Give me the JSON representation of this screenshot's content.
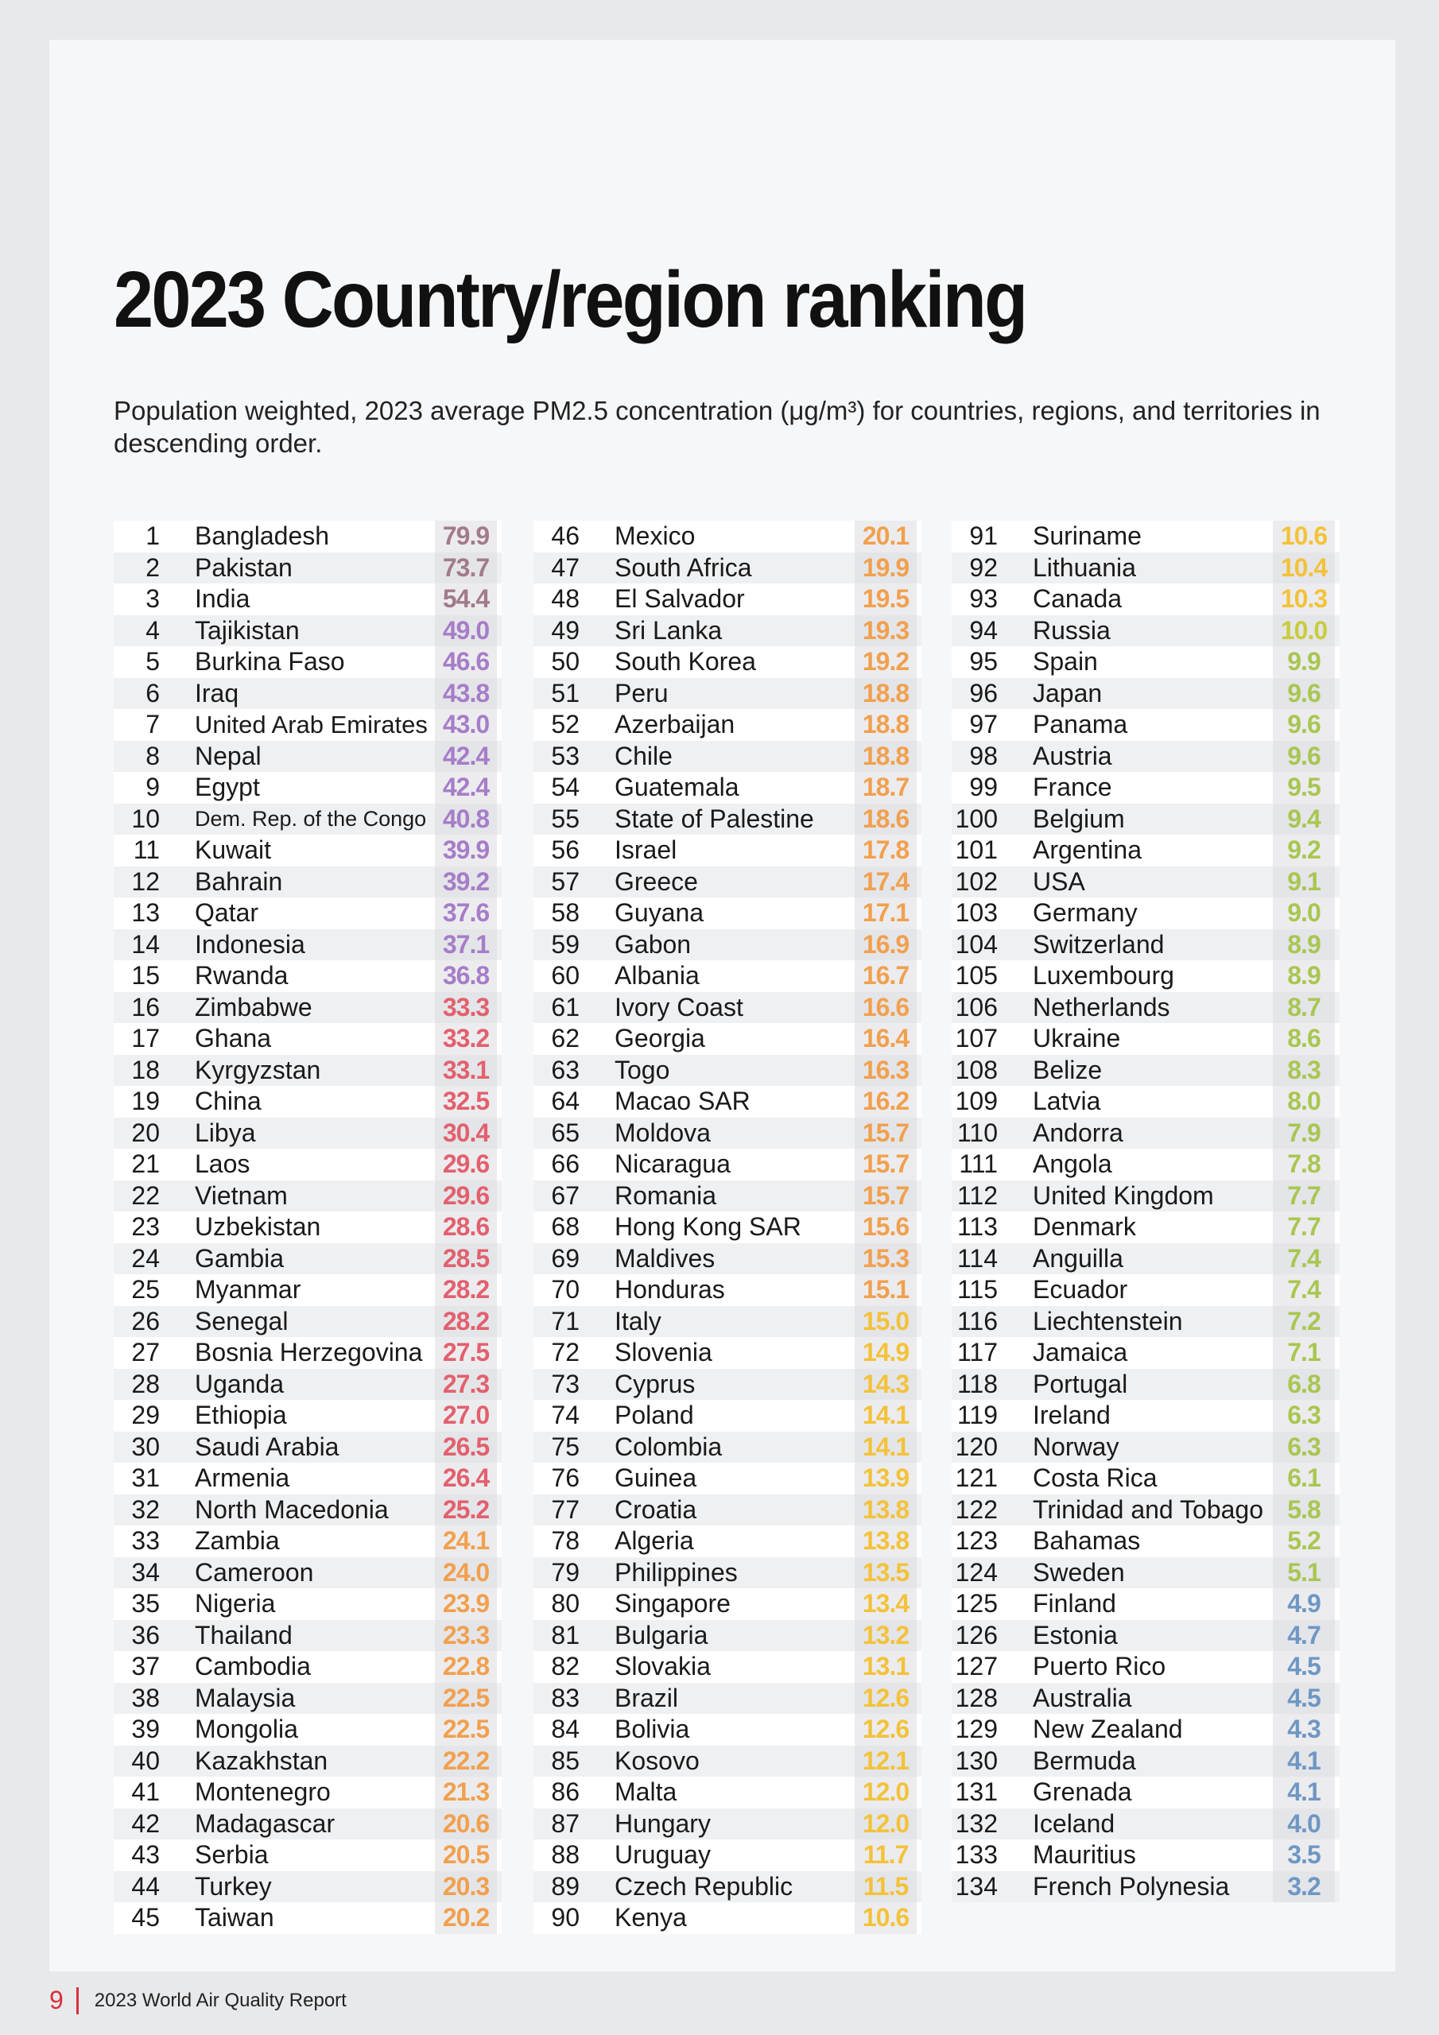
{
  "header": {
    "title": "2023 Country/region ranking",
    "subtitle": "Population weighted, 2023 average PM2.5 concentration (μg/m³) for countries, regions, and territories in descending order."
  },
  "table": {
    "columns": [
      {
        "rows": [
          [
            1,
            "Bangladesh",
            "79.9",
            "#a27a8c"
          ],
          [
            2,
            "Pakistan",
            "73.7",
            "#a27a8c"
          ],
          [
            3,
            "India",
            "54.4",
            "#a27a8c"
          ],
          [
            4,
            "Tajikistan",
            "49.0",
            "#a67dc8"
          ],
          [
            5,
            "Burkina Faso",
            "46.6",
            "#a67dc8"
          ],
          [
            6,
            "Iraq",
            "43.8",
            "#a67dc8"
          ],
          [
            7,
            "United Arab Emirates",
            "43.0",
            "#a67dc8"
          ],
          [
            8,
            "Nepal",
            "42.4",
            "#a67dc8"
          ],
          [
            9,
            "Egypt",
            "42.4",
            "#a67dc8"
          ],
          [
            10,
            "Dem. Rep. of the Congo",
            "40.8",
            "#a67dc8"
          ],
          [
            11,
            "Kuwait",
            "39.9",
            "#a67dc8"
          ],
          [
            12,
            "Bahrain",
            "39.2",
            "#a67dc8"
          ],
          [
            13,
            "Qatar",
            "37.6",
            "#a67dc8"
          ],
          [
            14,
            "Indonesia",
            "37.1",
            "#a67dc8"
          ],
          [
            15,
            "Rwanda",
            "36.8",
            "#a67dc8"
          ],
          [
            16,
            "Zimbabwe",
            "33.3",
            "#e2606e"
          ],
          [
            17,
            "Ghana",
            "33.2",
            "#e2606e"
          ],
          [
            18,
            "Kyrgyzstan",
            "33.1",
            "#e2606e"
          ],
          [
            19,
            "China",
            "32.5",
            "#e2606e"
          ],
          [
            20,
            "Libya",
            "30.4",
            "#e2606e"
          ],
          [
            21,
            "Laos",
            "29.6",
            "#e2606e"
          ],
          [
            22,
            "Vietnam",
            "29.6",
            "#e2606e"
          ],
          [
            23,
            "Uzbekistan",
            "28.6",
            "#e2606e"
          ],
          [
            24,
            "Gambia",
            "28.5",
            "#e2606e"
          ],
          [
            25,
            "Myanmar",
            "28.2",
            "#e2606e"
          ],
          [
            26,
            "Senegal",
            "28.2",
            "#e2606e"
          ],
          [
            27,
            "Bosnia Herzegovina",
            "27.5",
            "#e2606e"
          ],
          [
            28,
            "Uganda",
            "27.3",
            "#e2606e"
          ],
          [
            29,
            "Ethiopia",
            "27.0",
            "#e2606e"
          ],
          [
            30,
            "Saudi Arabia",
            "26.5",
            "#e2606e"
          ],
          [
            31,
            "Armenia",
            "26.4",
            "#e2606e"
          ],
          [
            32,
            "North Macedonia",
            "25.2",
            "#e2606e"
          ],
          [
            33,
            "Zambia",
            "24.1",
            "#f1a04e"
          ],
          [
            34,
            "Cameroon",
            "24.0",
            "#f1a04e"
          ],
          [
            35,
            "Nigeria",
            "23.9",
            "#f1a04e"
          ],
          [
            36,
            "Thailand",
            "23.3",
            "#f1a04e"
          ],
          [
            37,
            "Cambodia",
            "22.8",
            "#f1a04e"
          ],
          [
            38,
            "Malaysia",
            "22.5",
            "#f1a04e"
          ],
          [
            39,
            "Mongolia",
            "22.5",
            "#f1a04e"
          ],
          [
            40,
            "Kazakhstan",
            "22.2",
            "#f1a04e"
          ],
          [
            41,
            "Montenegro",
            "21.3",
            "#f1a04e"
          ],
          [
            42,
            "Madagascar",
            "20.6",
            "#f1a04e"
          ],
          [
            43,
            "Serbia",
            "20.5",
            "#f1a04e"
          ],
          [
            44,
            "Turkey",
            "20.3",
            "#f1a04e"
          ],
          [
            45,
            "Taiwan",
            "20.2",
            "#f1a04e"
          ]
        ]
      },
      {
        "rows": [
          [
            46,
            "Mexico",
            "20.1",
            "#f1a04e"
          ],
          [
            47,
            "South Africa",
            "19.9",
            "#f1a04e"
          ],
          [
            48,
            "El Salvador",
            "19.5",
            "#f1a04e"
          ],
          [
            49,
            "Sri Lanka",
            "19.3",
            "#f1a04e"
          ],
          [
            50,
            "South Korea",
            "19.2",
            "#f1a04e"
          ],
          [
            51,
            "Peru",
            "18.8",
            "#f1a04e"
          ],
          [
            52,
            "Azerbaijan",
            "18.8",
            "#f1a04e"
          ],
          [
            53,
            "Chile",
            "18.8",
            "#f1a04e"
          ],
          [
            54,
            "Guatemala",
            "18.7",
            "#f1a04e"
          ],
          [
            55,
            "State of Palestine",
            "18.6",
            "#f1a04e"
          ],
          [
            56,
            "Israel",
            "17.8",
            "#f1a04e"
          ],
          [
            57,
            "Greece",
            "17.4",
            "#f1a04e"
          ],
          [
            58,
            "Guyana",
            "17.1",
            "#f1a04e"
          ],
          [
            59,
            "Gabon",
            "16.9",
            "#f1a04e"
          ],
          [
            60,
            "Albania",
            "16.7",
            "#f1a04e"
          ],
          [
            61,
            "Ivory Coast",
            "16.6",
            "#f1a04e"
          ],
          [
            62,
            "Georgia",
            "16.4",
            "#f1a04e"
          ],
          [
            63,
            "Togo",
            "16.3",
            "#f1a04e"
          ],
          [
            64,
            "Macao SAR",
            "16.2",
            "#f1a04e"
          ],
          [
            65,
            "Moldova",
            "15.7",
            "#f1a04e"
          ],
          [
            66,
            "Nicaragua",
            "15.7",
            "#f1a04e"
          ],
          [
            67,
            "Romania",
            "15.7",
            "#f1a04e"
          ],
          [
            68,
            "Hong Kong SAR",
            "15.6",
            "#f1a04e"
          ],
          [
            69,
            "Maldives",
            "15.3",
            "#f1a04e"
          ],
          [
            70,
            "Honduras",
            "15.1",
            "#f1a04e"
          ],
          [
            71,
            "Italy",
            "15.0",
            "#f3c23a"
          ],
          [
            72,
            "Slovenia",
            "14.9",
            "#f3c23a"
          ],
          [
            73,
            "Cyprus",
            "14.3",
            "#f3c23a"
          ],
          [
            74,
            "Poland",
            "14.1",
            "#f3c23a"
          ],
          [
            75,
            "Colombia",
            "14.1",
            "#f3c23a"
          ],
          [
            76,
            "Guinea",
            "13.9",
            "#f3c23a"
          ],
          [
            77,
            "Croatia",
            "13.8",
            "#f3c23a"
          ],
          [
            78,
            "Algeria",
            "13.8",
            "#f3c23a"
          ],
          [
            79,
            "Philippines",
            "13.5",
            "#f3c23a"
          ],
          [
            80,
            "Singapore",
            "13.4",
            "#f3c23a"
          ],
          [
            81,
            "Bulgaria",
            "13.2",
            "#f3c23a"
          ],
          [
            82,
            "Slovakia",
            "13.1",
            "#f3c23a"
          ],
          [
            83,
            "Brazil",
            "12.6",
            "#f3c23a"
          ],
          [
            84,
            "Bolivia",
            "12.6",
            "#f3c23a"
          ],
          [
            85,
            "Kosovo",
            "12.1",
            "#f3c23a"
          ],
          [
            86,
            "Malta",
            "12.0",
            "#f3c23a"
          ],
          [
            87,
            "Hungary",
            "12.0",
            "#f3c23a"
          ],
          [
            88,
            "Uruguay",
            "11.7",
            "#f3c23a"
          ],
          [
            89,
            "Czech Republic",
            "11.5",
            "#f3c23a"
          ],
          [
            90,
            "Kenya",
            "10.6",
            "#f3c23a"
          ]
        ]
      },
      {
        "rows": [
          [
            91,
            "Suriname",
            "10.6",
            "#f3c23a"
          ],
          [
            92,
            "Lithuania",
            "10.4",
            "#f3c23a"
          ],
          [
            93,
            "Canada",
            "10.3",
            "#f3c23a"
          ],
          [
            94,
            "Russia",
            "10.0",
            "#c9cc3c"
          ],
          [
            95,
            "Spain",
            "9.9",
            "#a9c651"
          ],
          [
            96,
            "Japan",
            "9.6",
            "#a9c651"
          ],
          [
            97,
            "Panama",
            "9.6",
            "#a9c651"
          ],
          [
            98,
            "Austria",
            "9.6",
            "#a9c651"
          ],
          [
            99,
            "France",
            "9.5",
            "#a9c651"
          ],
          [
            100,
            "Belgium",
            "9.4",
            "#a9c651"
          ],
          [
            101,
            "Argentina",
            "9.2",
            "#a9c651"
          ],
          [
            102,
            "USA",
            "9.1",
            "#a9c651"
          ],
          [
            103,
            "Germany",
            "9.0",
            "#a9c651"
          ],
          [
            104,
            "Switzerland",
            "8.9",
            "#a9c651"
          ],
          [
            105,
            "Luxembourg",
            "8.9",
            "#a9c651"
          ],
          [
            106,
            "Netherlands",
            "8.7",
            "#a9c651"
          ],
          [
            107,
            "Ukraine",
            "8.6",
            "#a9c651"
          ],
          [
            108,
            "Belize",
            "8.3",
            "#a9c651"
          ],
          [
            109,
            "Latvia",
            "8.0",
            "#a9c651"
          ],
          [
            110,
            "Andorra",
            "7.9",
            "#a9c651"
          ],
          [
            111,
            "Angola",
            "7.8",
            "#a9c651"
          ],
          [
            112,
            "United Kingdom",
            "7.7",
            "#a9c651"
          ],
          [
            113,
            "Denmark",
            "7.7",
            "#a9c651"
          ],
          [
            114,
            "Anguilla",
            "7.4",
            "#a9c651"
          ],
          [
            115,
            "Ecuador",
            "7.4",
            "#a9c651"
          ],
          [
            116,
            "Liechtenstein",
            "7.2",
            "#a9c651"
          ],
          [
            117,
            "Jamaica",
            "7.1",
            "#a9c651"
          ],
          [
            118,
            "Portugal",
            "6.8",
            "#a9c651"
          ],
          [
            119,
            "Ireland",
            "6.3",
            "#a9c651"
          ],
          [
            120,
            "Norway",
            "6.3",
            "#a9c651"
          ],
          [
            121,
            "Costa Rica",
            "6.1",
            "#a9c651"
          ],
          [
            122,
            "Trinidad and Tobago",
            "5.8",
            "#a9c651"
          ],
          [
            123,
            "Bahamas",
            "5.2",
            "#a9c651"
          ],
          [
            124,
            "Sweden",
            "5.1",
            "#a9c651"
          ],
          [
            125,
            "Finland",
            "4.9",
            "#6f97c4"
          ],
          [
            126,
            "Estonia",
            "4.7",
            "#6f97c4"
          ],
          [
            127,
            "Puerto Rico",
            "4.5",
            "#6f97c4"
          ],
          [
            128,
            "Australia",
            "4.5",
            "#6f97c4"
          ],
          [
            129,
            "New Zealand",
            "4.3",
            "#6f97c4"
          ],
          [
            130,
            "Bermuda",
            "4.1",
            "#6f97c4"
          ],
          [
            131,
            "Grenada",
            "4.1",
            "#6f97c4"
          ],
          [
            132,
            "Iceland",
            "4.0",
            "#6f97c4"
          ],
          [
            133,
            "Mauritius",
            "3.5",
            "#6f97c4"
          ],
          [
            134,
            "French Polynesia",
            "3.2",
            "#6f97c4"
          ]
        ]
      }
    ]
  },
  "footer": {
    "page": 9,
    "text": "2023 World Air Quality Report"
  }
}
